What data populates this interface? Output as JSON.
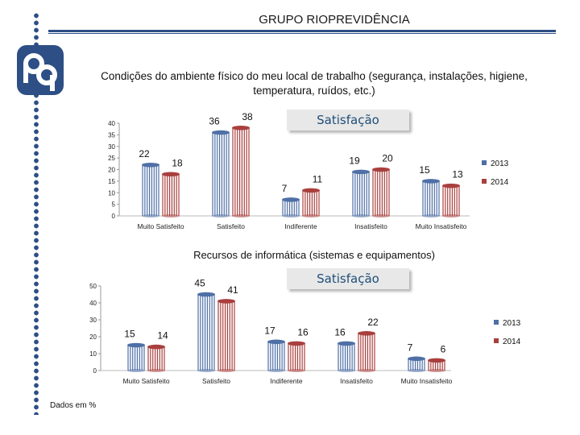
{
  "title": "GRUPO RIOPREVIDÊNCIA",
  "logo_text": "RP",
  "satisfaction_label": "Satisfação",
  "footnote": "Dados em %",
  "colors": {
    "brand": "#2d4f85",
    "series_2013": "#4f6fa6",
    "series_2014": "#a9403e",
    "satis_text": "#1f4e79"
  },
  "chart_data": [
    {
      "type": "bar",
      "title": "Condições do ambiente físico do meu local de trabalho (segurança, instalações, higiene, temperatura, ruídos, etc.)",
      "categories": [
        "Muito Satisfeito",
        "Satisfeito",
        "Indiferente",
        "Insatisfeito",
        "Muito Insatisfeito"
      ],
      "series": [
        {
          "name": "2013",
          "values": [
            22,
            36,
            7,
            19,
            15
          ]
        },
        {
          "name": "2014",
          "values": [
            18,
            38,
            11,
            20,
            13
          ]
        }
      ],
      "ylim": [
        0,
        40
      ],
      "yticks": [
        0,
        5,
        10,
        15,
        20,
        25,
        30,
        35,
        40
      ],
      "legend": "right"
    },
    {
      "type": "bar",
      "title": "Recursos de informática (sistemas e equipamentos)",
      "categories": [
        "Muito Satisfeito",
        "Satisfeito",
        "Indiferente",
        "Insatisfeito",
        "Muito Insatisfeito"
      ],
      "series": [
        {
          "name": "2013",
          "values": [
            15,
            45,
            17,
            16,
            7
          ]
        },
        {
          "name": "2014",
          "values": [
            14,
            41,
            16,
            22,
            6
          ]
        }
      ],
      "ylim": [
        0,
        50
      ],
      "yticks": [
        0,
        10,
        20,
        30,
        40,
        50
      ],
      "legend": "right"
    }
  ]
}
